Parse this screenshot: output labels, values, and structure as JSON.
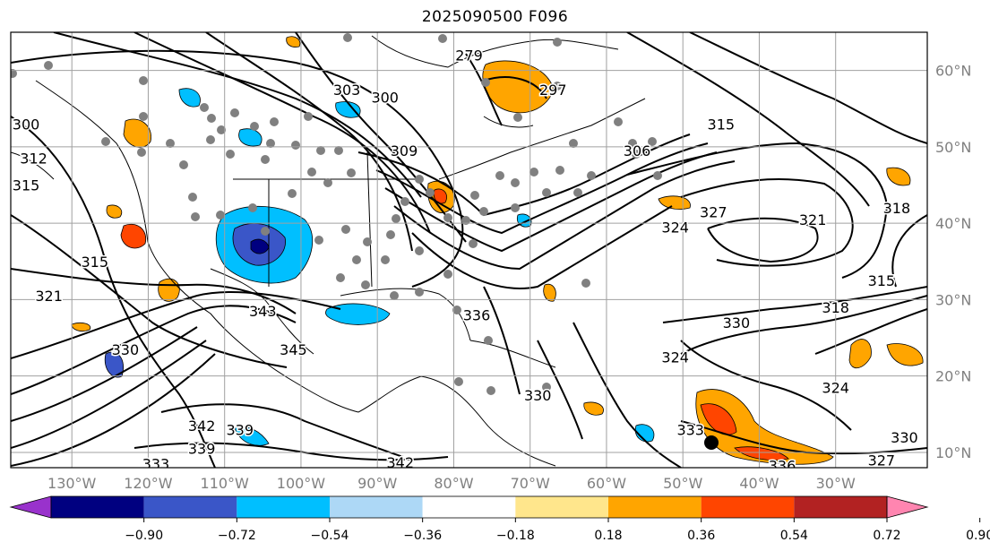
{
  "title": "2025090500 F096",
  "lat_labels": [
    "60°N",
    "50°N",
    "40°N",
    "30°N",
    "20°N",
    "10°N"
  ],
  "lat_values": [
    60,
    50,
    40,
    30,
    20,
    10
  ],
  "lon_labels": [
    "130°W",
    "120°W",
    "110°W",
    "100°W",
    "90°W",
    "80°W",
    "70°W",
    "60°W",
    "50°W",
    "40°W",
    "30°W"
  ],
  "lon_values": [
    -130,
    -120,
    -110,
    -100,
    -90,
    -80,
    -70,
    -60,
    -50,
    -40,
    -30
  ],
  "map_extent": {
    "lon_min": -138,
    "lon_max": -18,
    "lat_min": 8,
    "lat_max": 65
  },
  "gridlines": true,
  "colorbar": {
    "ticks": [
      "−0.90",
      "−0.72",
      "−0.54",
      "−0.36",
      "−0.18",
      "0.18",
      "0.36",
      "0.54",
      "0.72",
      "0.90"
    ],
    "colors": [
      "#9932cc",
      "#000080",
      "#3a56c8",
      "#00bfff",
      "#add8f6",
      "#ffffff",
      "#ffe68c",
      "#ffa500",
      "#ff4500",
      "#b22222",
      "#ff85b0"
    ],
    "extend": "both"
  },
  "contour_labels": [
    {
      "text": "300",
      "lon": -136,
      "lat": 53
    },
    {
      "text": "312",
      "lon": -135,
      "lat": 48.5
    },
    {
      "text": "315",
      "lon": -136,
      "lat": 45
    },
    {
      "text": "315",
      "lon": -127,
      "lat": 35
    },
    {
      "text": "321",
      "lon": -133,
      "lat": 30.5
    },
    {
      "text": "330",
      "lon": -123,
      "lat": 23.5
    },
    {
      "text": "342",
      "lon": -113,
      "lat": 13.5
    },
    {
      "text": "339",
      "lon": -108,
      "lat": 13
    },
    {
      "text": "339",
      "lon": -113,
      "lat": 10.5
    },
    {
      "text": "333",
      "lon": -119,
      "lat": 8.5
    },
    {
      "text": "342",
      "lon": -87,
      "lat": 8.7
    },
    {
      "text": "303",
      "lon": -94,
      "lat": 57.5
    },
    {
      "text": "300",
      "lon": -89,
      "lat": 56.5
    },
    {
      "text": "309",
      "lon": -86.5,
      "lat": 49.5
    },
    {
      "text": "297",
      "lon": -67,
      "lat": 57.5
    },
    {
      "text": "279",
      "lon": -78,
      "lat": 62
    },
    {
      "text": "306",
      "lon": -56,
      "lat": 49.5
    },
    {
      "text": "315",
      "lon": -45,
      "lat": 53
    },
    {
      "text": "324",
      "lon": -51,
      "lat": 39.5
    },
    {
      "text": "327",
      "lon": -46,
      "lat": 41.5
    },
    {
      "text": "321",
      "lon": -33,
      "lat": 40.5
    },
    {
      "text": "318",
      "lon": -22,
      "lat": 42
    },
    {
      "text": "315",
      "lon": -24,
      "lat": 32.5
    },
    {
      "text": "318",
      "lon": -30,
      "lat": 29
    },
    {
      "text": "330",
      "lon": -43,
      "lat": 27
    },
    {
      "text": "324",
      "lon": -51,
      "lat": 22.5
    },
    {
      "text": "324",
      "lon": -30,
      "lat": 18.5
    },
    {
      "text": "330",
      "lon": -69,
      "lat": 17.5
    },
    {
      "text": "330",
      "lon": -21,
      "lat": 12
    },
    {
      "text": "333",
      "lon": -49,
      "lat": 13
    },
    {
      "text": "336",
      "lon": -77,
      "lat": 28
    },
    {
      "text": "343",
      "lon": -105,
      "lat": 28.5
    },
    {
      "text": "345",
      "lon": -101,
      "lat": 23.5
    },
    {
      "text": "336",
      "lon": -37,
      "lat": 8.3
    },
    {
      "text": "327",
      "lon": -24,
      "lat": 9
    }
  ]
}
